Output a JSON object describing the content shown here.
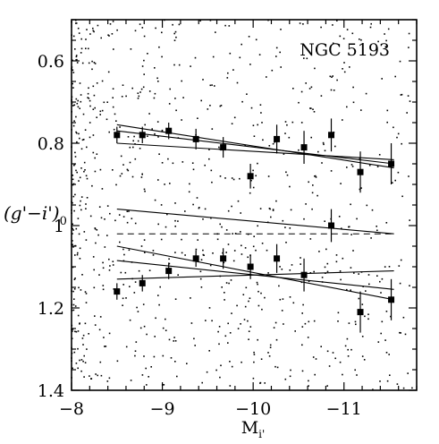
{
  "chart_data": {
    "type": "scatter",
    "annotation": "NGC 5193",
    "xlabel": "M",
    "xlabel_subscript": "i'",
    "ylabel": "(g'−i')",
    "ylabel_subscript": "0",
    "xlim": [
      -8,
      -11.8
    ],
    "ylim": [
      1.4,
      0.5
    ],
    "y_inverted": true,
    "x_ticks_major": [
      -8,
      -9,
      -10,
      -11
    ],
    "x_tick_labels": [
      "−8",
      "−9",
      "−10",
      "−11"
    ],
    "y_ticks_major": [
      0.6,
      0.8,
      1.0,
      1.2,
      1.4
    ],
    "y_tick_labels": [
      "0.6",
      "0.8",
      "1",
      "1.2",
      "1.4"
    ],
    "grid": false,
    "series": [
      {
        "kind": "binned_blue_peak",
        "marker": "square",
        "points": [
          {
            "x": -8.5,
            "y": 0.78,
            "err": 0.02
          },
          {
            "x": -8.78,
            "y": 0.78,
            "err": 0.02
          },
          {
            "x": -9.07,
            "y": 0.77,
            "err": 0.02
          },
          {
            "x": -9.37,
            "y": 0.79,
            "err": 0.025
          },
          {
            "x": -9.67,
            "y": 0.81,
            "err": 0.025
          },
          {
            "x": -9.97,
            "y": 0.88,
            "err": 0.03
          },
          {
            "x": -10.26,
            "y": 0.79,
            "err": 0.035
          },
          {
            "x": -10.56,
            "y": 0.81,
            "err": 0.04
          },
          {
            "x": -10.86,
            "y": 0.78,
            "err": 0.04
          },
          {
            "x": -11.18,
            "y": 0.87,
            "err": 0.05
          },
          {
            "x": -11.52,
            "y": 0.85,
            "err": 0.05
          }
        ]
      },
      {
        "kind": "binned_red_peak",
        "marker": "square",
        "points": [
          {
            "x": -8.5,
            "y": 1.16,
            "err": 0.02
          },
          {
            "x": -8.78,
            "y": 1.14,
            "err": 0.02
          },
          {
            "x": -9.07,
            "y": 1.11,
            "err": 0.02
          },
          {
            "x": -9.37,
            "y": 1.08,
            "err": 0.02
          },
          {
            "x": -9.67,
            "y": 1.08,
            "err": 0.025
          },
          {
            "x": -9.97,
            "y": 1.1,
            "err": 0.03
          },
          {
            "x": -10.26,
            "y": 1.08,
            "err": 0.035
          },
          {
            "x": -10.56,
            "y": 1.12,
            "err": 0.04
          },
          {
            "x": -10.86,
            "y": 1.0,
            "err": 0.04
          },
          {
            "x": -11.18,
            "y": 1.21,
            "err": 0.05
          },
          {
            "x": -11.52,
            "y": 1.18,
            "err": 0.05
          }
        ]
      }
    ],
    "fit_lines": [
      {
        "x": [
          -8.5,
          -11.55
        ],
        "y": [
          0.755,
          0.86
        ]
      },
      {
        "x": [
          -8.5,
          -11.55
        ],
        "y": [
          0.77,
          0.85
        ]
      },
      {
        "x": [
          -8.5,
          -11.55
        ],
        "y": [
          0.8,
          0.84
        ]
      },
      {
        "x": [
          -8.5,
          -11.55
        ],
        "y": [
          0.96,
          1.02
        ]
      },
      {
        "x": [
          -8.5,
          -11.55
        ],
        "y": [
          1.05,
          1.18
        ]
      },
      {
        "x": [
          -8.5,
          -11.55
        ],
        "y": [
          1.085,
          1.155
        ]
      },
      {
        "x": [
          -8.5,
          -11.55
        ],
        "y": [
          1.13,
          1.11
        ]
      }
    ],
    "reference_lines": [
      {
        "y": 1.02,
        "style": "dashed",
        "x": [
          -8.5,
          -11.55
        ]
      }
    ]
  }
}
